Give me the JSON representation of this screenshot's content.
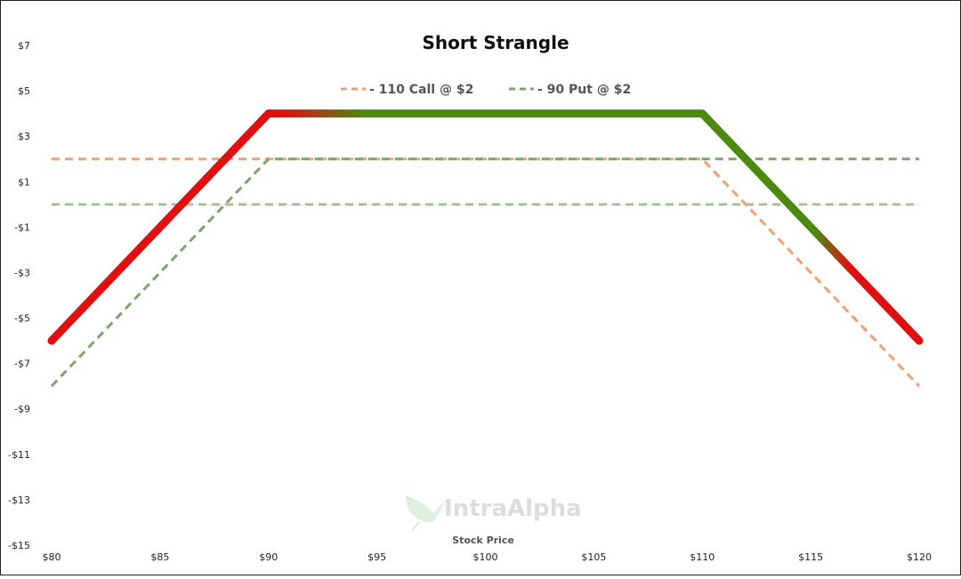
{
  "chart_data": {
    "type": "line",
    "title": "Short Strangle",
    "xlabel": "Stock Price",
    "ylabel": "",
    "xlim": [
      80,
      120
    ],
    "ylim": [
      -15,
      7
    ],
    "x_ticks": [
      80,
      85,
      90,
      95,
      100,
      105,
      110,
      115,
      120
    ],
    "x_tick_labels": [
      "$80",
      "$85",
      "$90",
      "$95",
      "$100",
      "$105",
      "$110",
      "$115",
      "$120"
    ],
    "y_ticks": [
      7,
      5,
      3,
      1,
      -1,
      -3,
      -5,
      -7,
      -9,
      -11,
      -13,
      -15
    ],
    "y_tick_labels": [
      "$7",
      "$5",
      "$3",
      "$1",
      "-$1",
      "-$3",
      "-$5",
      "-$7",
      "-$9",
      "-$11",
      "-$13",
      "-$15"
    ],
    "legend_position": "top-center",
    "series": [
      {
        "name": "110 Call @ $2",
        "style": "dashed",
        "color": "#f0a071",
        "x": [
          80,
          110,
          120
        ],
        "y": [
          2,
          2,
          -8
        ]
      },
      {
        "name": "90 Put @ $2",
        "style": "dashed",
        "color": "#7fa36b",
        "x": [
          80,
          90,
          120
        ],
        "y": [
          -8,
          2,
          2
        ]
      },
      {
        "name": "",
        "style": "dashed-zero",
        "color": "#a9bfa0",
        "x": [
          80,
          120
        ],
        "y": [
          0,
          0
        ]
      },
      {
        "name": "",
        "style": "solid-profit-loss",
        "color_profit": "#4a8a0e",
        "color_loss": "#e01010",
        "x": [
          80,
          90,
          110,
          120
        ],
        "y": [
          -6,
          4,
          4,
          -6
        ]
      }
    ]
  },
  "watermark": {
    "text": "IntraAlpha",
    "icon": "hummingbird-icon"
  }
}
